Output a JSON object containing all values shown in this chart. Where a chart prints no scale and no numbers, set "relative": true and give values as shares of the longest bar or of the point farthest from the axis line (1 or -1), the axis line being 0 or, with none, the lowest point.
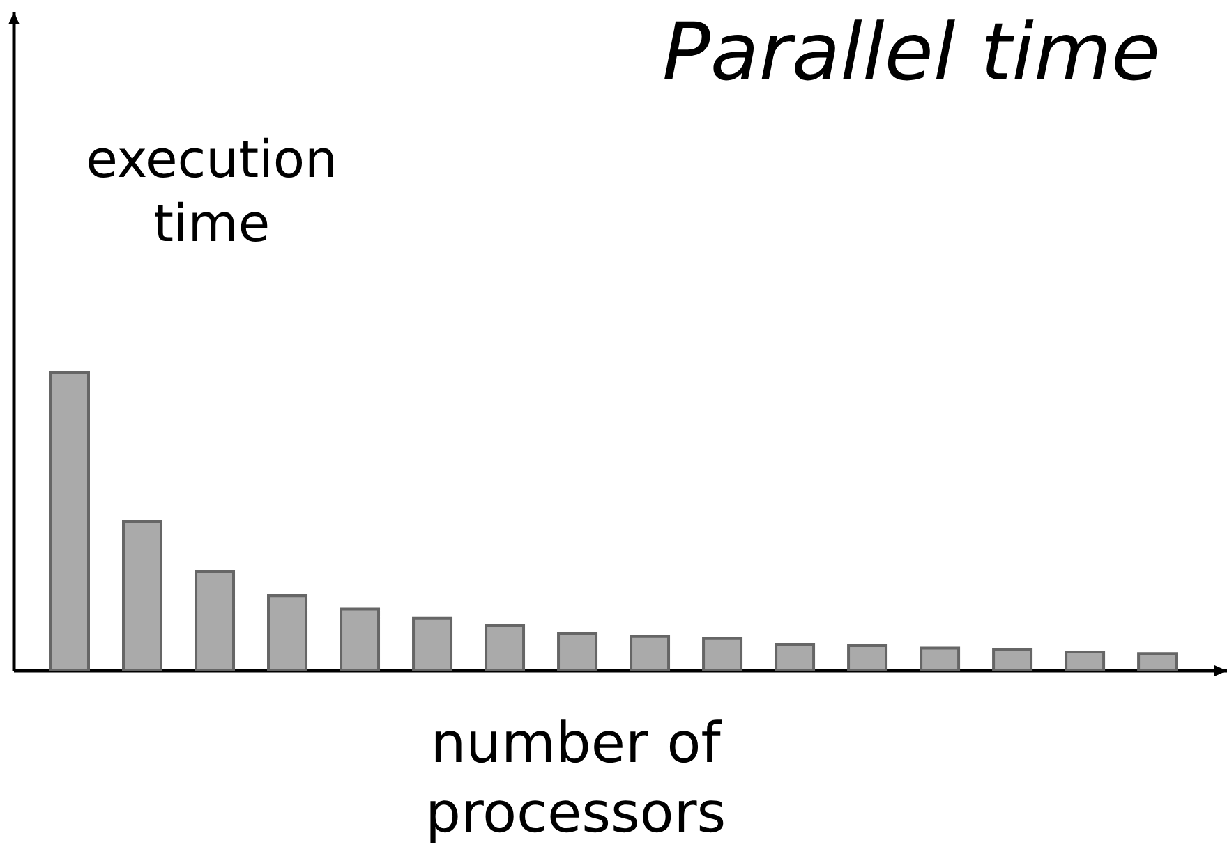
{
  "chart_data": {
    "type": "bar",
    "title": "Parallel time",
    "xlabel": "number of processors",
    "ylabel": "execution time",
    "categories": [
      null,
      null,
      null,
      null,
      null,
      null,
      null,
      null,
      null,
      null,
      null,
      null,
      null,
      null,
      null,
      null
    ],
    "values": [
      1,
      0.5,
      0.333,
      0.252,
      0.207,
      0.176,
      0.152,
      0.126,
      0.115,
      0.108,
      0.089,
      0.084,
      0.076,
      0.071,
      0.063,
      0.058
    ],
    "color": "#aaaaaa",
    "relative": true
  }
}
